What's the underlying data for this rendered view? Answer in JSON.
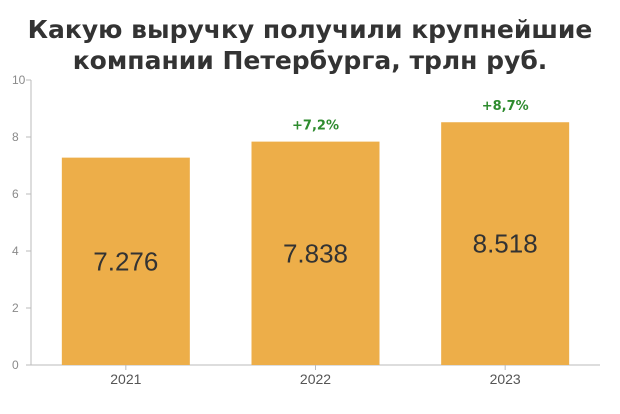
{
  "chart_data": {
    "type": "bar",
    "title_lines": [
      "Какую выручку получили крупнейшие",
      "компании Петербурга, трлн руб."
    ],
    "categories": [
      "2021",
      "2022",
      "2023"
    ],
    "values": [
      7.276,
      7.838,
      8.518
    ],
    "value_labels": [
      "7.276",
      "7.838",
      "8.518"
    ],
    "change_labels": [
      "",
      "+7,2%",
      "+8,7%"
    ],
    "ylim": [
      0,
      10
    ],
    "yticks": [
      0,
      2,
      4,
      6,
      8,
      10
    ],
    "ytick_labels": [
      "0",
      "2",
      "4",
      "6",
      "8",
      "10"
    ],
    "grid": false,
    "colors": {
      "bar": "#EDAE49",
      "change": "#2E8B2E",
      "axis": "#BBBBBB"
    }
  }
}
